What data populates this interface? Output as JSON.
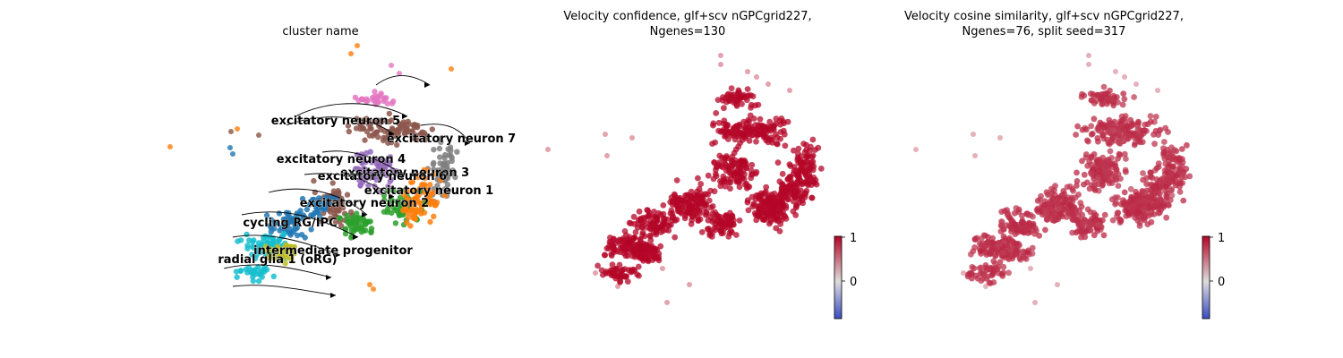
{
  "chart_data": [
    {
      "type": "scatter",
      "subtype": "umap-embedding-with-velocity-streamlines",
      "title": "cluster name",
      "colored_by": "cluster",
      "clusters": [
        {
          "name": "excitatory neuron 5",
          "color": "#8c564b"
        },
        {
          "name": "excitatory neuron 7",
          "color": "#7f7f7f"
        },
        {
          "name": "excitatory neuron 4",
          "color": "#9467bd"
        },
        {
          "name": "excitatory neuron 3",
          "color": "#ff7f0e"
        },
        {
          "name": "excitatory neuron 6",
          "color": "#e377c2"
        },
        {
          "name": "excitatory neuron 1",
          "color": "#ff7f0e"
        },
        {
          "name": "excitatory neuron 2",
          "color": "#2ca02c"
        },
        {
          "name": "cycling RG/IPC",
          "color": "#1f77b4"
        },
        {
          "name": "intermediate progenitor",
          "color": "#bcbd22"
        },
        {
          "name": "radial glia 1 (oRG)",
          "color": "#17becf"
        }
      ],
      "streamlines": true,
      "axes_visible": false
    },
    {
      "type": "scatter",
      "title_line1": "Velocity confidence, glf+scv nGPCgrid227,",
      "title_line2": "Ngenes=130",
      "colormap": "coolwarm",
      "colorbar": {
        "min": -0.8,
        "max": 1,
        "ticks": [
          1,
          0
        ],
        "tick_labels": [
          "1",
          "0"
        ]
      },
      "dominant_value": 1.0,
      "axes_visible": false
    },
    {
      "type": "scatter",
      "title_line1": "Velocity cosine similarity, glf+scv nGPCgrid227,",
      "title_line2": "Ngenes=76, split seed=317",
      "colormap": "coolwarm",
      "colorbar": {
        "min": -0.8,
        "max": 1,
        "ticks": [
          1,
          0
        ],
        "tick_labels": [
          "1",
          "0"
        ]
      },
      "dominant_value": 0.85,
      "axes_visible": false
    }
  ]
}
